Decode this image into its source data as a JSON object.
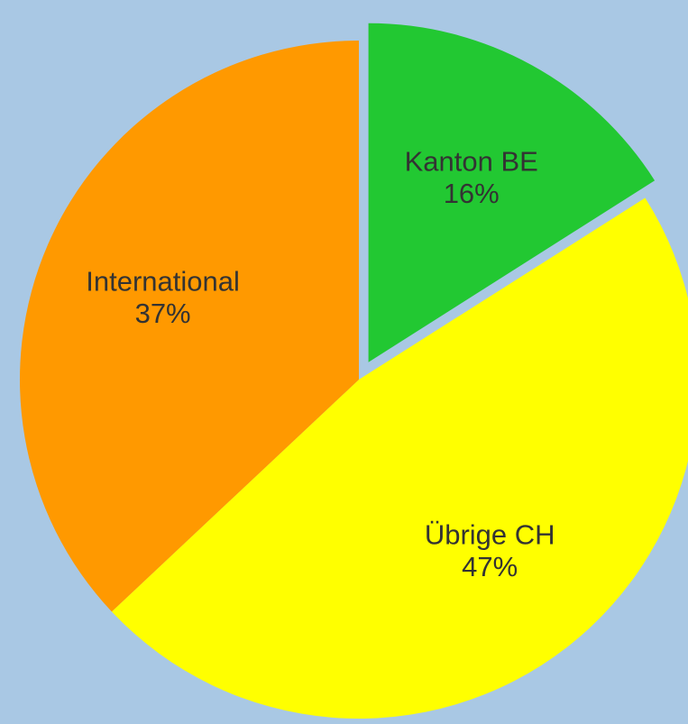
{
  "chart_data": {
    "type": "pie",
    "categories": [
      "Kanton BE",
      "Übrige CH",
      "International"
    ],
    "values": [
      16,
      47,
      37
    ],
    "value_labels": [
      "16%",
      "47%",
      "37%"
    ],
    "colors": [
      "#22c832",
      "#ffff00",
      "#ff9900"
    ],
    "explode": [
      true,
      false,
      false
    ]
  }
}
